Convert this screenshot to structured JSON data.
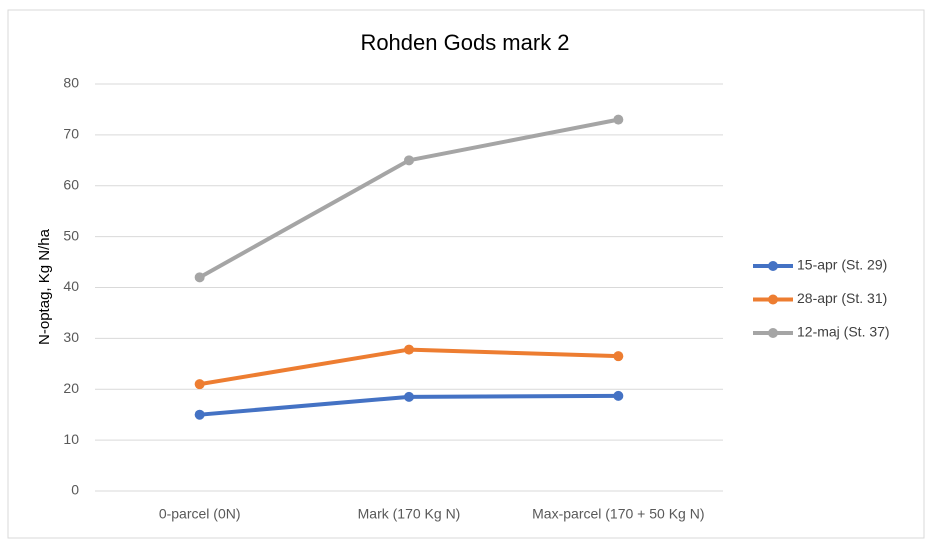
{
  "chart_data": {
    "type": "line",
    "title": "Rohden Gods mark 2",
    "y_label": "N-optag, Kg N/ha",
    "categories": [
      "0-parcel (0N)",
      "Mark (170 Kg N)",
      "Max-parcel (170 + 50 Kg N)"
    ],
    "series": [
      {
        "name": "15-apr (St. 29)",
        "color": "#4472c4",
        "values": [
          15,
          18.5,
          18.7
        ]
      },
      {
        "name": "28-apr (St. 31)",
        "color": "#ed7d31",
        "values": [
          21,
          27.8,
          26.5
        ]
      },
      {
        "name": "12-maj (St. 37)",
        "color": "#a5a5a5",
        "values": [
          42,
          65,
          73
        ]
      }
    ],
    "ylim": [
      0,
      80
    ],
    "yticks": [
      0,
      10,
      20,
      30,
      40,
      50,
      60,
      70,
      80
    ],
    "grid": true,
    "legend": "right"
  }
}
